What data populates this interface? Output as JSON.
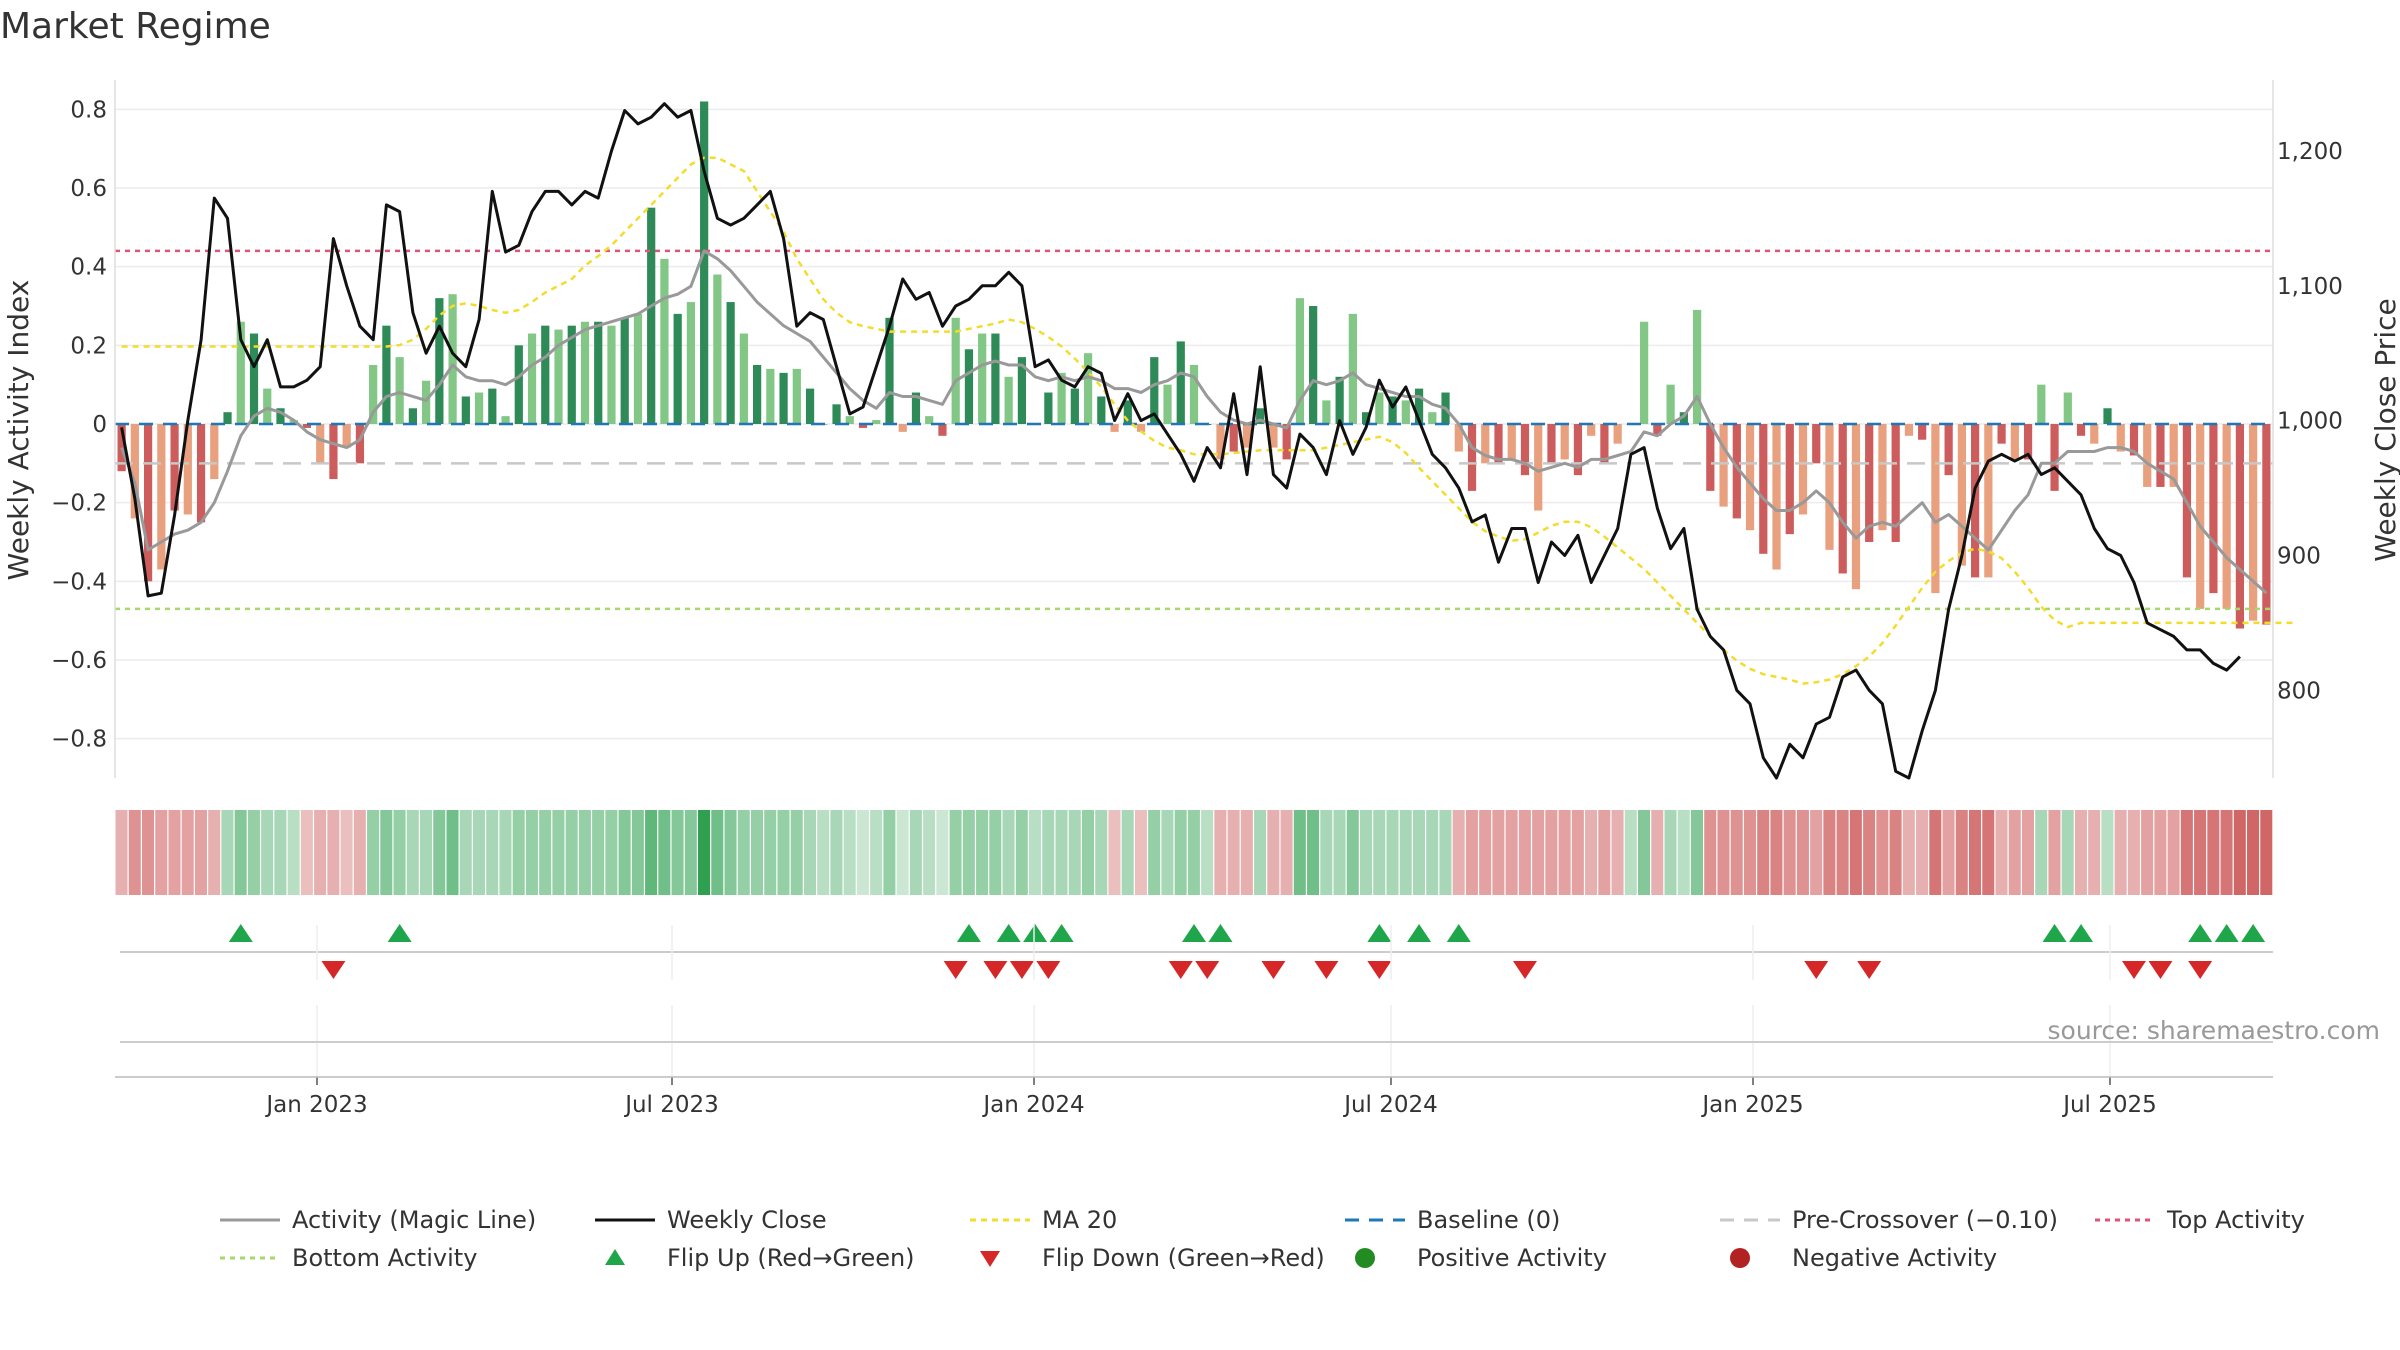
{
  "chart_data": {
    "type": "bar",
    "title": "Market Regime",
    "ylabel_left": "Weekly Activity Index",
    "ylabel_right": "Weekly Close Price",
    "source": "source: sharemaestro.com",
    "x_ticks": [
      "Jan 2023",
      "Jul 2023",
      "Jan 2024",
      "Jul 2024",
      "Jan 2025",
      "Jul 2025"
    ],
    "y_left_ticks": [
      "0.8",
      "0.6",
      "0.4",
      "0.2",
      "0",
      "−0.2",
      "−0.4",
      "−0.6",
      "−0.8"
    ],
    "y_left_range": [
      -0.9,
      0.9
    ],
    "y_right_ticks": [
      "1,200",
      "1,100",
      "1,000",
      "900",
      "800"
    ],
    "y_right_range": [
      735,
      1260
    ],
    "thresholds": {
      "top": 0.44,
      "bottom": -0.47,
      "pre_crossover": -0.1,
      "baseline": 0
    },
    "colors": {
      "pos_strong": "#2e8b57",
      "pos_light": "#82c785",
      "neg_strong": "#cd5c5c",
      "neg_light": "#e8a07e",
      "magic": "#999999",
      "close": "#111111",
      "ma": "#f2dc2c",
      "baseline": "#1f77b4",
      "pre": "#c8c8c8",
      "top": "#e05577",
      "bottom": "#a6d86e",
      "flip_up": "#1fa64a",
      "flip_down": "#d62728"
    },
    "activity": [
      -0.12,
      -0.24,
      -0.4,
      -0.37,
      -0.22,
      -0.23,
      -0.25,
      -0.14,
      0.03,
      0.26,
      0.23,
      0.09,
      0.04,
      0.01,
      -0.01,
      -0.1,
      -0.14,
      -0.06,
      -0.1,
      0.15,
      0.25,
      0.17,
      0.04,
      0.11,
      0.32,
      0.33,
      0.07,
      0.08,
      0.09,
      0.02,
      0.2,
      0.23,
      0.25,
      0.24,
      0.25,
      0.26,
      0.26,
      0.25,
      0.27,
      0.28,
      0.55,
      0.42,
      0.28,
      0.31,
      0.82,
      0.38,
      0.31,
      0.23,
      0.15,
      0.14,
      0.13,
      0.14,
      0.09,
      0.0,
      0.05,
      0.02,
      -0.01,
      0.01,
      0.27,
      -0.02,
      0.08,
      0.02,
      -0.03,
      0.27,
      0.19,
      0.23,
      0.23,
      0.12,
      0.17,
      0.0,
      0.08,
      0.13,
      0.09,
      0.18,
      0.07,
      -0.02,
      0.06,
      -0.02,
      0.17,
      0.1,
      0.21,
      0.15,
      0.0,
      -0.09,
      -0.07,
      -0.06,
      0.04,
      -0.06,
      -0.09,
      0.32,
      0.3,
      0.06,
      0.12,
      0.28,
      0.03,
      0.08,
      0.07,
      0.06,
      0.09,
      0.03,
      0.08,
      -0.07,
      -0.17,
      -0.1,
      -0.1,
      -0.09,
      -0.13,
      -0.22,
      -0.1,
      -0.09,
      -0.13,
      -0.03,
      -0.1,
      -0.05,
      0.0,
      0.26,
      -0.03,
      0.1,
      0.03,
      0.29,
      -0.17,
      -0.21,
      -0.24,
      -0.27,
      -0.33,
      -0.37,
      -0.28,
      -0.23,
      -0.1,
      -0.32,
      -0.38,
      -0.42,
      -0.3,
      -0.27,
      -0.3,
      -0.03,
      -0.04,
      -0.43,
      -0.13,
      -0.36,
      -0.39,
      -0.39,
      -0.05,
      -0.09,
      -0.09,
      0.1,
      -0.17,
      0.08,
      -0.03,
      -0.05,
      0.04,
      -0.07,
      -0.08,
      -0.16,
      -0.16,
      -0.16,
      -0.39,
      -0.47,
      -0.43,
      -0.47,
      -0.52,
      -0.5,
      -0.51
    ],
    "magic_line": [
      -0.06,
      -0.15,
      -0.32,
      -0.3,
      -0.28,
      -0.27,
      -0.25,
      -0.2,
      -0.12,
      -0.03,
      0.02,
      0.04,
      0.03,
      0.01,
      -0.02,
      -0.04,
      -0.05,
      -0.06,
      -0.04,
      0.03,
      0.07,
      0.08,
      0.07,
      0.06,
      0.1,
      0.15,
      0.12,
      0.11,
      0.11,
      0.1,
      0.12,
      0.15,
      0.17,
      0.2,
      0.22,
      0.24,
      0.25,
      0.26,
      0.27,
      0.28,
      0.3,
      0.32,
      0.33,
      0.35,
      0.44,
      0.42,
      0.39,
      0.35,
      0.31,
      0.28,
      0.25,
      0.23,
      0.21,
      0.17,
      0.13,
      0.09,
      0.06,
      0.04,
      0.08,
      0.07,
      0.07,
      0.06,
      0.05,
      0.11,
      0.13,
      0.15,
      0.16,
      0.15,
      0.15,
      0.12,
      0.11,
      0.12,
      0.11,
      0.12,
      0.11,
      0.09,
      0.09,
      0.08,
      0.1,
      0.11,
      0.13,
      0.12,
      0.07,
      0.03,
      0.01,
      0.0,
      0.01,
      0.0,
      -0.01,
      0.06,
      0.11,
      0.1,
      0.11,
      0.13,
      0.1,
      0.09,
      0.08,
      0.07,
      0.07,
      0.05,
      0.04,
      0.0,
      -0.06,
      -0.08,
      -0.09,
      -0.09,
      -0.1,
      -0.12,
      -0.11,
      -0.1,
      -0.11,
      -0.09,
      -0.09,
      -0.08,
      -0.07,
      -0.02,
      -0.03,
      0.0,
      0.02,
      0.07,
      0.0,
      -0.06,
      -0.11,
      -0.15,
      -0.19,
      -0.22,
      -0.22,
      -0.2,
      -0.17,
      -0.2,
      -0.25,
      -0.29,
      -0.26,
      -0.25,
      -0.26,
      -0.23,
      -0.2,
      -0.25,
      -0.23,
      -0.26,
      -0.29,
      -0.32,
      -0.27,
      -0.22,
      -0.18,
      -0.1,
      -0.1,
      -0.07,
      -0.07,
      -0.07,
      -0.06,
      -0.06,
      -0.07,
      -0.1,
      -0.12,
      -0.14,
      -0.2,
      -0.26,
      -0.3,
      -0.34,
      -0.37,
      -0.4,
      -0.43
    ],
    "weekly_close": [
      995,
      942,
      870,
      872,
      930,
      1000,
      1060,
      1165,
      1150,
      1060,
      1040,
      1060,
      1025,
      1025,
      1030,
      1040,
      1135,
      1100,
      1070,
      1060,
      1160,
      1155,
      1080,
      1050,
      1070,
      1050,
      1040,
      1075,
      1170,
      1125,
      1130,
      1155,
      1170,
      1170,
      1160,
      1170,
      1165,
      1200,
      1230,
      1220,
      1225,
      1235,
      1225,
      1230,
      1185,
      1150,
      1145,
      1150,
      1160,
      1170,
      1135,
      1070,
      1080,
      1075,
      1040,
      1005,
      1010,
      1040,
      1070,
      1105,
      1090,
      1095,
      1070,
      1085,
      1090,
      1100,
      1100,
      1110,
      1100,
      1040,
      1045,
      1030,
      1025,
      1040,
      1035,
      1000,
      1020,
      1000,
      1005,
      990,
      975,
      955,
      980,
      965,
      1020,
      960,
      1040,
      960,
      950,
      990,
      980,
      960,
      1000,
      975,
      995,
      1030,
      1010,
      1025,
      1000,
      975,
      965,
      950,
      925,
      930,
      895,
      920,
      920,
      880,
      910,
      900,
      915,
      880,
      900,
      920,
      975,
      980,
      935,
      905,
      920,
      860,
      840,
      830,
      800,
      790,
      750,
      735,
      760,
      750,
      775,
      780,
      810,
      815,
      800,
      790,
      740,
      735,
      770,
      800,
      860,
      900,
      950,
      970,
      975,
      970,
      975,
      960,
      965,
      955,
      945,
      920,
      905,
      900,
      880,
      850,
      845,
      840,
      830,
      830,
      820,
      815,
      825
    ],
    "ma20": [
      1055,
      1055,
      1055,
      1055,
      1055,
      1055,
      1055,
      1055,
      1055,
      1055,
      1055,
      1055,
      1055,
      1055,
      1055,
      1055,
      1055,
      1055,
      1055,
      1055,
      1055,
      1056,
      1060,
      1068,
      1078,
      1085,
      1087,
      1085,
      1082,
      1080,
      1082,
      1088,
      1095,
      1100,
      1105,
      1115,
      1122,
      1130,
      1140,
      1150,
      1160,
      1170,
      1180,
      1190,
      1195,
      1195,
      1190,
      1185,
      1170,
      1155,
      1140,
      1120,
      1105,
      1090,
      1080,
      1073,
      1070,
      1068,
      1066,
      1066,
      1066,
      1066,
      1066,
      1066,
      1068,
      1070,
      1072,
      1075,
      1073,
      1068,
      1062,
      1055,
      1046,
      1036,
      1025,
      1012,
      1000,
      992,
      985,
      980,
      978,
      975,
      975,
      975,
      976,
      977,
      978,
      978,
      978,
      978,
      978,
      980,
      982,
      984,
      986,
      988,
      984,
      976,
      965,
      955,
      945,
      935,
      925,
      918,
      914,
      911,
      912,
      917,
      922,
      925,
      925,
      921,
      914,
      906,
      898,
      890,
      880,
      870,
      860,
      850,
      840,
      830,
      822,
      816,
      812,
      810,
      808,
      805,
      806,
      808,
      812,
      818,
      825,
      835,
      848,
      862,
      876,
      888,
      896,
      902,
      905,
      903,
      898,
      888,
      876,
      862,
      852,
      847,
      850,
      850,
      850,
      850,
      850,
      850,
      850,
      850,
      850,
      850,
      850,
      850,
      850,
      850,
      850,
      850,
      850
    ],
    "regime_strip_shades": [
      -0.2,
      -0.4,
      -0.4,
      -0.3,
      -0.3,
      -0.3,
      -0.3,
      -0.2,
      0.2,
      0.4,
      0.3,
      0.2,
      0.2,
      0.1,
      -0.1,
      -0.2,
      -0.2,
      -0.1,
      -0.2,
      0.3,
      0.4,
      0.3,
      0.2,
      0.2,
      0.4,
      0.5,
      0.2,
      0.2,
      0.2,
      0.2,
      0.3,
      0.3,
      0.3,
      0.3,
      0.3,
      0.3,
      0.3,
      0.3,
      0.4,
      0.4,
      0.6,
      0.5,
      0.4,
      0.4,
      0.9,
      0.5,
      0.4,
      0.3,
      0.3,
      0.3,
      0.3,
      0.3,
      0.2,
      0.1,
      0.2,
      0.1,
      0.0,
      0.1,
      0.3,
      0.0,
      0.2,
      0.1,
      0.0,
      0.3,
      0.3,
      0.3,
      0.3,
      0.2,
      0.3,
      0.1,
      0.2,
      0.2,
      0.2,
      0.3,
      0.2,
      -0.1,
      0.2,
      -0.1,
      0.3,
      0.2,
      0.3,
      0.3,
      0.1,
      -0.2,
      -0.2,
      -0.2,
      0.2,
      -0.2,
      -0.2,
      0.5,
      0.5,
      0.2,
      0.2,
      0.4,
      0.2,
      0.2,
      0.2,
      0.2,
      0.2,
      0.2,
      0.2,
      -0.2,
      -0.3,
      -0.3,
      -0.3,
      -0.3,
      -0.3,
      -0.3,
      -0.3,
      -0.3,
      -0.3,
      -0.2,
      -0.3,
      -0.2,
      0.1,
      0.4,
      -0.2,
      0.2,
      0.1,
      0.4,
      -0.4,
      -0.4,
      -0.4,
      -0.4,
      -0.5,
      -0.5,
      -0.4,
      -0.4,
      -0.3,
      -0.5,
      -0.5,
      -0.6,
      -0.5,
      -0.4,
      -0.5,
      -0.2,
      -0.2,
      -0.6,
      -0.3,
      -0.5,
      -0.6,
      -0.6,
      -0.2,
      -0.3,
      -0.3,
      0.2,
      -0.3,
      0.2,
      -0.2,
      -0.2,
      0.1,
      -0.2,
      -0.2,
      -0.3,
      -0.3,
      -0.3,
      -0.6,
      -0.6,
      -0.6,
      -0.6,
      -0.7,
      -0.7,
      -0.7
    ],
    "flip_up_idx": [
      9,
      21,
      64,
      67,
      69,
      71,
      81,
      83,
      95,
      98,
      101,
      146,
      148,
      157,
      159,
      161
    ],
    "flip_down_idx": [
      16,
      63,
      66,
      68,
      70,
      80,
      82,
      87,
      91,
      95,
      106,
      128,
      132,
      152,
      154,
      157
    ],
    "legend": [
      {
        "key": "magic",
        "label": "Activity (Magic Line)"
      },
      {
        "key": "close",
        "label": "Weekly Close"
      },
      {
        "key": "ma",
        "label": "MA 20"
      },
      {
        "key": "baseline",
        "label": "Baseline (0)"
      },
      {
        "key": "pre",
        "label": "Pre-Crossover (−0.10)"
      },
      {
        "key": "top",
        "label": "Top Activity"
      },
      {
        "key": "bottom",
        "label": "Bottom Activity"
      },
      {
        "key": "flip_up",
        "label": "Flip Up (Red→Green)"
      },
      {
        "key": "flip_down",
        "label": "Flip Down (Green→Red)"
      },
      {
        "key": "pos_dot",
        "label": "Positive Activity"
      },
      {
        "key": "neg_dot",
        "label": "Negative Activity"
      }
    ]
  }
}
